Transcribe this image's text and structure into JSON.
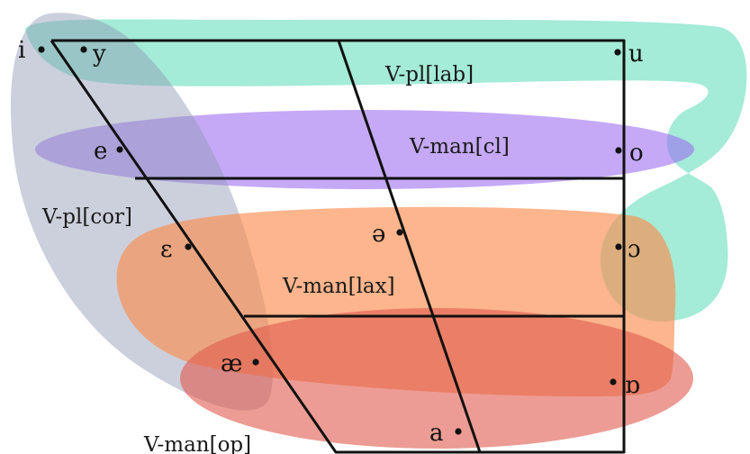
{
  "regions": {
    "labial": {
      "label": "V-pl[lab]",
      "color": "#62dcbc",
      "opacity": 0.58
    },
    "close": {
      "label": "V-man[cl]",
      "color": "#9b6bf0",
      "opacity": 0.58
    },
    "coronal": {
      "label": "V-pl[cor]",
      "color": "#8f97b3",
      "opacity": 0.45
    },
    "lax": {
      "label": "V-man[lax]",
      "color": "#fb8e4f",
      "opacity": 0.65
    },
    "open": {
      "label": "V-man[op]",
      "color": "#e05a4c",
      "opacity": 0.6
    }
  },
  "vowels": {
    "i": "i",
    "y": "y",
    "u": "u",
    "e": "e",
    "o": "o",
    "eps": "ɛ",
    "schwa": "ə",
    "openo": "ɔ",
    "ae": "æ",
    "turned_alpha": "ɒ",
    "a": "a"
  },
  "frame_color": "#111111"
}
